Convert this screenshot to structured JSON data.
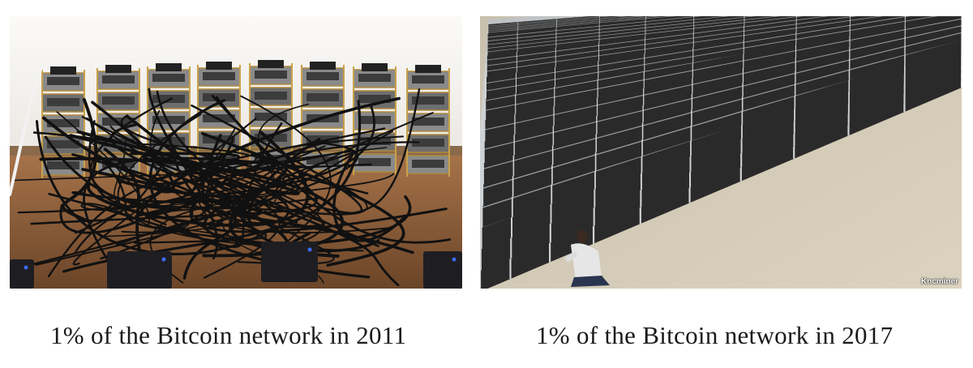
{
  "panels": [
    {
      "caption": "1% of the Bitcoin network in 2011",
      "image": "small-mining-rig-stacks-with-tangled-cables"
    },
    {
      "caption": "1% of the Bitcoin network in 2017",
      "image": "large-warehouse-mining-farm-with-rows-of-racks",
      "watermark": "Kncminer"
    }
  ]
}
